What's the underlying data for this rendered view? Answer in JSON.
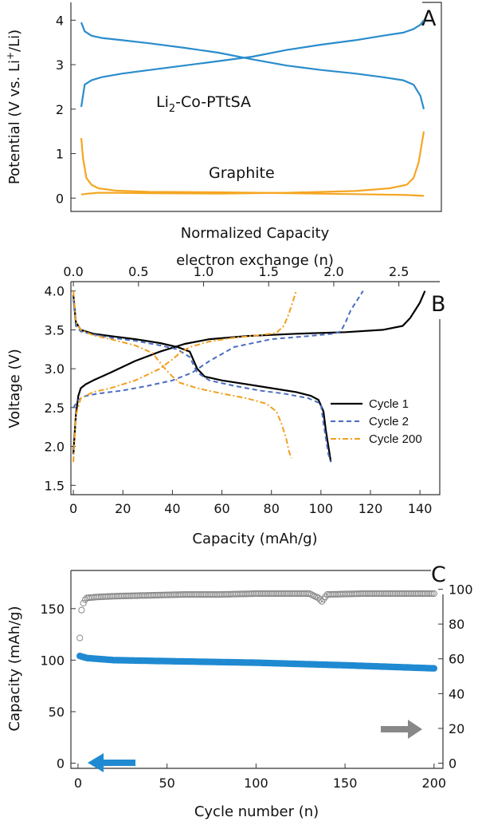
{
  "colors": {
    "blue": "#2a8ccc",
    "orange": "#f5a623",
    "black": "#000000",
    "dashblue": "#4a6cc0",
    "dashorange": "#f0a020",
    "gray": "#888888",
    "ceblue": "#1f8ad1"
  },
  "chart_data": [
    {
      "panel": "A",
      "type": "line",
      "xlabel": "Normalized Capacity",
      "ylabel": "Potential (V vs. Li+/Li)",
      "ylabel_parts": [
        "Potential (V vs. Li",
        "+",
        "/Li)"
      ],
      "ylim": [
        -0.3,
        4.4
      ],
      "yticks": [
        "0",
        "1",
        "2",
        "3",
        "4"
      ],
      "annotations": [
        {
          "text_parts": [
            "Li",
            "2",
            "-Co-PTtSA"
          ]
        },
        {
          "text": "Graphite"
        }
      ],
      "series": [
        {
          "role": "Li2-Co-PTtSA charge",
          "color": "#2a8ccc",
          "x": [
            0,
            0.01,
            0.03,
            0.06,
            0.12,
            0.2,
            0.3,
            0.4,
            0.5,
            0.6,
            0.7,
            0.8,
            0.88,
            0.94,
            0.97,
            0.99,
            1.0
          ],
          "y": [
            2.05,
            2.55,
            2.65,
            2.72,
            2.8,
            2.88,
            2.98,
            3.08,
            3.18,
            3.33,
            3.45,
            3.55,
            3.65,
            3.72,
            3.8,
            3.9,
            4.0
          ]
        },
        {
          "role": "Li2-Co-PTtSA discharge",
          "color": "#2a8ccc",
          "x": [
            0,
            0.01,
            0.03,
            0.06,
            0.12,
            0.2,
            0.3,
            0.4,
            0.5,
            0.6,
            0.7,
            0.8,
            0.88,
            0.94,
            0.97,
            0.99,
            1.0
          ],
          "y": [
            3.95,
            3.75,
            3.65,
            3.6,
            3.55,
            3.48,
            3.38,
            3.27,
            3.12,
            2.98,
            2.88,
            2.8,
            2.72,
            2.65,
            2.55,
            2.3,
            2.0
          ]
        },
        {
          "role": "Graphite charge",
          "color": "#f5a623",
          "x": [
            0,
            0.02,
            0.05,
            0.1,
            0.2,
            0.4,
            0.6,
            0.8,
            0.9,
            0.95,
            0.97,
            0.985,
            1.0
          ],
          "y": [
            0.08,
            0.1,
            0.12,
            0.12,
            0.11,
            0.1,
            0.12,
            0.16,
            0.22,
            0.3,
            0.45,
            0.8,
            1.5
          ]
        },
        {
          "role": "Graphite discharge",
          "color": "#f5a623",
          "x": [
            0,
            0.005,
            0.015,
            0.03,
            0.05,
            0.1,
            0.2,
            0.4,
            0.6,
            0.8,
            0.95,
            1.0
          ],
          "y": [
            1.35,
            0.9,
            0.45,
            0.3,
            0.22,
            0.17,
            0.14,
            0.13,
            0.11,
            0.09,
            0.07,
            0.05
          ]
        }
      ]
    },
    {
      "panel": "B",
      "type": "line",
      "xlabel": "Capacity (mAh/g)",
      "x2label": "electron exchange (n)",
      "ylabel": "Voltage (V)",
      "xlim": [
        -1,
        148
      ],
      "ylim": [
        1.38,
        4.12
      ],
      "xticks": [
        "0",
        "20",
        "40",
        "60",
        "80",
        "100",
        "120",
        "140"
      ],
      "x2ticks": [
        "0.0",
        "0.5",
        "1.0",
        "1.5",
        "2.0",
        "2.5"
      ],
      "yticks": [
        "1.5",
        "2.0",
        "2.5",
        "3.0",
        "3.5",
        "4.0"
      ],
      "legend_position": "right",
      "series": [
        {
          "name": "Cycle 1",
          "color": "#000000",
          "dash": "",
          "x": [
            0,
            1,
            2,
            3,
            5,
            8,
            15,
            25,
            35,
            45,
            55,
            70,
            90,
            110,
            125,
            133,
            136,
            138,
            140,
            142
          ],
          "y": [
            1.9,
            2.4,
            2.65,
            2.75,
            2.8,
            2.85,
            2.95,
            3.1,
            3.22,
            3.32,
            3.38,
            3.42,
            3.45,
            3.47,
            3.5,
            3.55,
            3.65,
            3.75,
            3.85,
            4.0
          ]
        },
        {
          "name": "Cycle 1",
          "color": "#000000",
          "dash": "",
          "x": [
            0,
            1,
            3,
            8,
            15,
            25,
            35,
            42,
            47,
            50,
            53,
            60,
            70,
            80,
            90,
            96,
            99,
            101,
            102,
            103,
            104
          ],
          "y": [
            3.95,
            3.6,
            3.5,
            3.45,
            3.42,
            3.38,
            3.33,
            3.28,
            3.22,
            3.0,
            2.9,
            2.85,
            2.8,
            2.75,
            2.7,
            2.65,
            2.6,
            2.45,
            2.2,
            2.0,
            1.8
          ]
        },
        {
          "name": "Cycle 2",
          "color": "#4a6cc0",
          "dash": "6,4",
          "x": [
            0,
            1,
            2,
            5,
            10,
            20,
            30,
            40,
            48,
            55,
            65,
            80,
            95,
            105,
            108,
            110,
            112,
            115,
            117
          ],
          "y": [
            2.5,
            2.55,
            2.6,
            2.65,
            2.68,
            2.72,
            2.78,
            2.85,
            2.95,
            3.1,
            3.28,
            3.38,
            3.42,
            3.45,
            3.48,
            3.6,
            3.75,
            3.9,
            4.0
          ]
        },
        {
          "name": "Cycle 2",
          "color": "#4a6cc0",
          "dash": "6,4",
          "x": [
            0,
            1,
            3,
            8,
            15,
            25,
            35,
            42,
            47,
            50,
            55,
            65,
            75,
            85,
            95,
            100,
            101,
            102,
            103,
            104
          ],
          "y": [
            3.9,
            3.55,
            3.48,
            3.44,
            3.4,
            3.36,
            3.3,
            3.25,
            3.15,
            2.95,
            2.85,
            2.78,
            2.72,
            2.68,
            2.62,
            2.55,
            2.3,
            2.1,
            1.9,
            1.8
          ]
        },
        {
          "name": "Cycle 200",
          "color": "#f0a020",
          "dash": "7,3,2,3",
          "x": [
            0,
            1,
            3,
            8,
            15,
            25,
            35,
            40,
            43,
            47,
            55,
            65,
            75,
            82,
            85,
            87,
            89,
            90
          ],
          "y": [
            1.8,
            2.4,
            2.62,
            2.7,
            2.75,
            2.85,
            3.0,
            3.12,
            3.2,
            3.28,
            3.35,
            3.4,
            3.43,
            3.46,
            3.55,
            3.7,
            3.9,
            4.0
          ]
        },
        {
          "name": "Cycle 200",
          "color": "#f0a020",
          "dash": "7,3,2,3",
          "x": [
            0,
            1,
            3,
            8,
            15,
            25,
            32,
            37,
            40,
            43,
            50,
            60,
            70,
            78,
            82,
            84,
            86,
            87,
            88
          ],
          "y": [
            4.0,
            3.6,
            3.5,
            3.43,
            3.38,
            3.3,
            3.2,
            3.0,
            2.9,
            2.82,
            2.75,
            2.68,
            2.62,
            2.55,
            2.45,
            2.3,
            2.1,
            1.95,
            1.85
          ]
        }
      ]
    },
    {
      "panel": "C",
      "type": "scatter",
      "xlabel": "Cycle number (n)",
      "ylabel": "Capacity (mAh/g)",
      "xlim": [
        -4,
        205
      ],
      "ylim": [
        -5,
        187
      ],
      "y2lim": [
        -2.96,
        110.8
      ],
      "xticks": [
        "0",
        "50",
        "100",
        "150",
        "200"
      ],
      "yticks": [
        "0",
        "50",
        "100",
        "150"
      ],
      "y2ticks": [
        "0",
        "20",
        "40",
        "60",
        "80",
        "100"
      ],
      "series": [
        {
          "role": "coulombic efficiency (right axis)",
          "axis": "right",
          "marker": "open-circle",
          "color": "#888888",
          "x": [
            1,
            2,
            3,
            4,
            5,
            10,
            20,
            40,
            60,
            80,
            100,
            120,
            130,
            135,
            137,
            140,
            160,
            180,
            200
          ],
          "y": [
            72,
            88,
            92,
            94,
            95,
            95.5,
            96,
            96.5,
            97,
            97,
            97.5,
            97.5,
            97.5,
            95,
            93,
            97,
            97.5,
            97.5,
            97.5
          ]
        },
        {
          "role": "capacity (left axis)",
          "axis": "left",
          "marker": "filled-circle",
          "color": "#1f8ad1",
          "x": [
            1,
            5,
            20,
            50,
            100,
            150,
            200
          ],
          "y": [
            104,
            102,
            100,
            99,
            97.5,
            95,
            92
          ]
        }
      ]
    }
  ]
}
